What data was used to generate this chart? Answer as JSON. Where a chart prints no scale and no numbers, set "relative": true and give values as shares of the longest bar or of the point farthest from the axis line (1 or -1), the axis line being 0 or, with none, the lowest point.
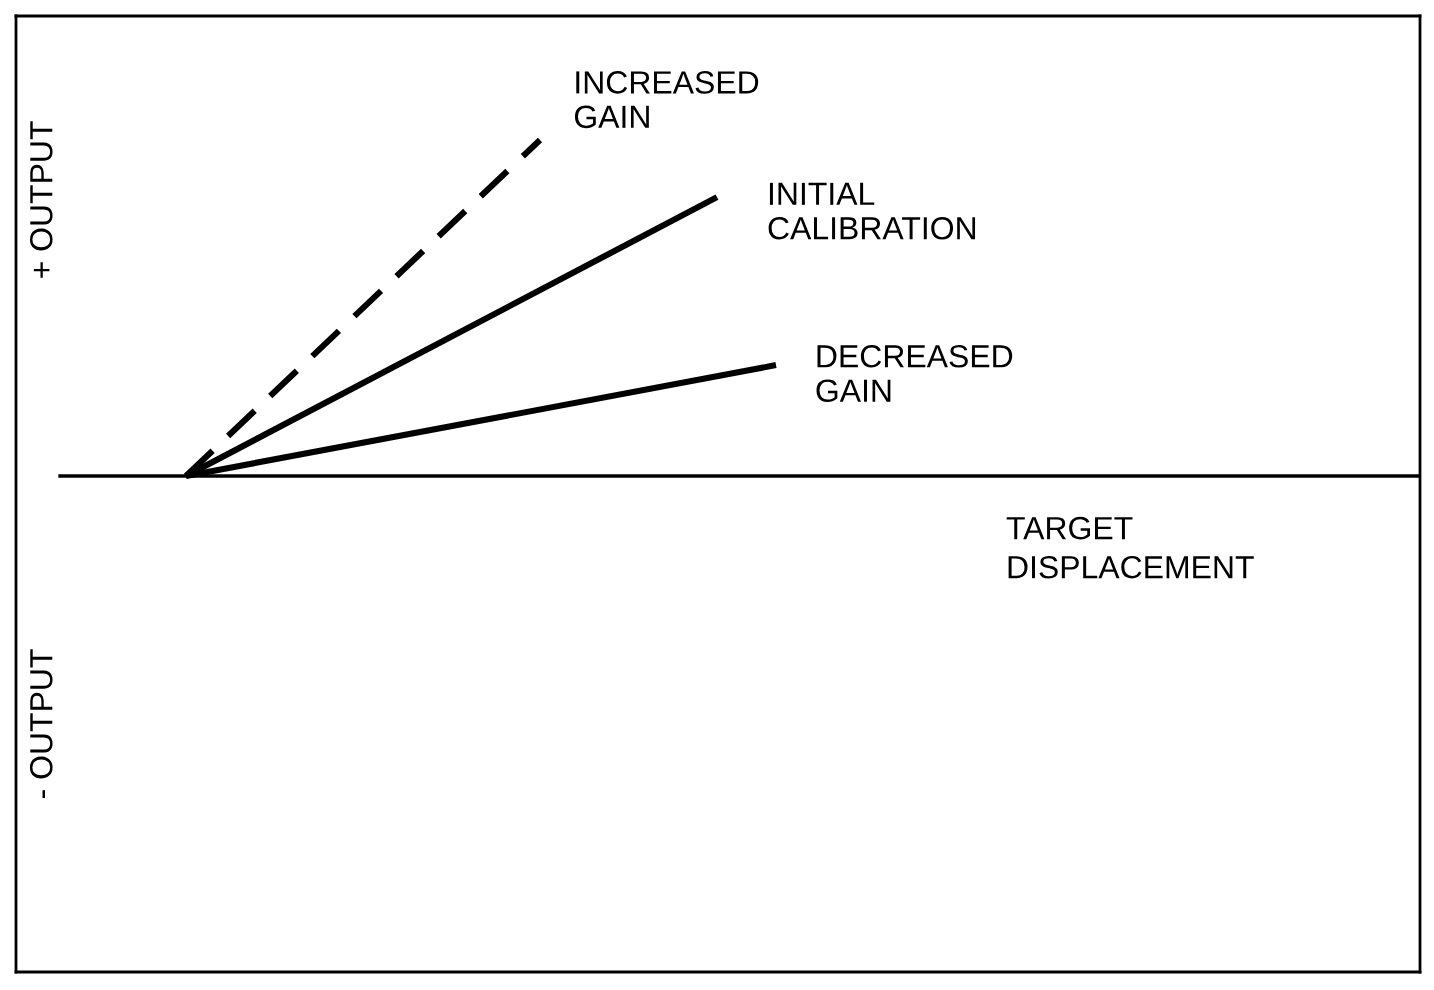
{
  "chart_data": {
    "type": "line",
    "relative": true,
    "categories": [
      null,
      null,
      null,
      null,
      null,
      null,
      null,
      null,
      null,
      null,
      null
    ],
    "annotations": [
      "+ OUTPUT",
      "- OUTPUT",
      "TARGET\nDISPLACEMENT"
    ],
    "series": [
      {
        "name": "INCREASED\nGAIN",
        "color": "#000000",
        "line_style": "dashed",
        "values": [
          0,
          null,
          null,
          null,
          null,
          null,
          1,
          null,
          null,
          null,
          null
        ]
      },
      {
        "name": "INITIAL\nCALIBRATION",
        "color": "#000000",
        "line_style": "solid",
        "values": [
          0,
          null,
          null,
          null,
          null,
          null,
          null,
          null,
          null,
          0.83,
          null
        ]
      },
      {
        "name": "DECREASED\nGAIN",
        "color": "#000000",
        "line_style": "solid",
        "values": [
          0,
          null,
          null,
          null,
          null,
          null,
          null,
          null,
          null,
          null,
          0.33
        ]
      }
    ],
    "marker": "none"
  }
}
